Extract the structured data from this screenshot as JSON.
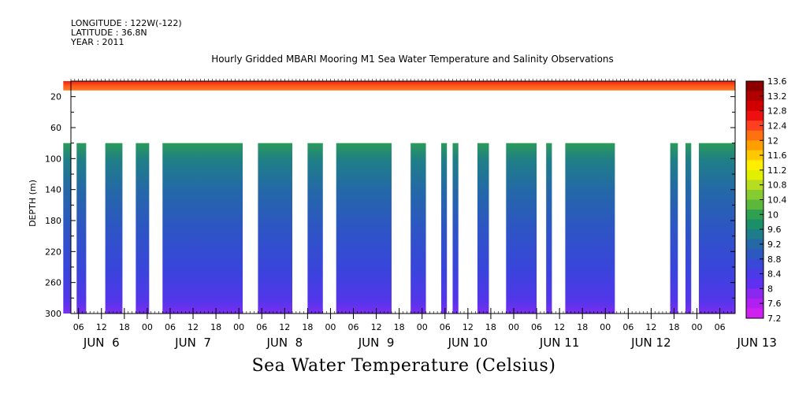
{
  "meta_lines": {
    "longitude": "LONGITUDE : 122W(-122)",
    "latitude": "LATITUDE : 36.8N",
    "year": "YEAR : 2011"
  },
  "chart_data": {
    "type": "heatmap",
    "title": "Hourly Gridded MBARI Mooring M1 Sea Water Temperature and Salinity Observations",
    "xlabel": "Sea Water Temperature (Celsius)",
    "ylabel": "DEPTH (m)",
    "y_axis": {
      "range": [
        0,
        300
      ],
      "inverted": true,
      "tick_labels": [
        "20",
        "60",
        "100",
        "140",
        "180",
        "220",
        "260",
        "300"
      ]
    },
    "x_axis": {
      "hour_tick_labels": [
        "06",
        "12",
        "18",
        "00",
        "06",
        "12",
        "18",
        "00",
        "06",
        "12",
        "18",
        "00",
        "06",
        "12",
        "18",
        "00",
        "06",
        "12",
        "18",
        "00",
        "06",
        "12",
        "18",
        "00",
        "06",
        "12",
        "18",
        "00",
        "06",
        "12",
        "18",
        "00",
        "06",
        "12",
        "18",
        "00",
        "06"
      ],
      "day_labels": [
        "JUN  6",
        "JUN  7",
        "JUN  8",
        "JUN  9",
        "JUN 10",
        "JUN 11",
        "JUN 12",
        "JUN 13"
      ],
      "range_hours": [
        0,
        174
      ]
    },
    "colorbar": {
      "labels": [
        "13.6",
        "13.2",
        "12.8",
        "12.4",
        "12",
        "11.6",
        "11.2",
        "10.8",
        "10.4",
        "10",
        "9.6",
        "9.2",
        "8.8",
        "8.4",
        "8",
        "7.6",
        "7.2"
      ],
      "colors": [
        "#8b0000",
        "#b00000",
        "#d00000",
        "#ee1010",
        "#ff4020",
        "#ff7010",
        "#ff9e00",
        "#ffc800",
        "#ffee00",
        "#e0ee00",
        "#b8dd20",
        "#86cc30",
        "#5cb83a",
        "#2fa050",
        "#1a8f68",
        "#1f7c8a",
        "#2468a8",
        "#2d58c0",
        "#3a48d8",
        "#4a3ae8",
        "#6030f0",
        "#8a28f0",
        "#b020f0",
        "#d020f0"
      ]
    },
    "surface_band": {
      "depth_range": [
        0,
        8
      ],
      "temperature_range": [
        12.4,
        13.4
      ]
    },
    "data_segments_hours": [
      [
        2,
        4
      ],
      [
        5.5,
        8
      ],
      [
        13,
        17.5
      ],
      [
        21,
        24.5
      ],
      [
        28,
        49
      ],
      [
        53,
        62
      ],
      [
        66,
        70
      ],
      [
        73.5,
        88
      ],
      [
        93,
        97
      ],
      [
        101,
        102.5
      ],
      [
        104,
        105.5
      ],
      [
        110.5,
        113.5
      ],
      [
        118,
        126
      ],
      [
        128.5,
        130
      ],
      [
        133.5,
        146.5
      ],
      [
        161,
        163
      ],
      [
        165,
        166.5
      ],
      [
        168.5,
        178
      ],
      [
        191,
        199
      ]
    ],
    "data_depth_range": [
      80,
      300
    ],
    "temperature_range": [
      7.2,
      9.6
    ]
  }
}
